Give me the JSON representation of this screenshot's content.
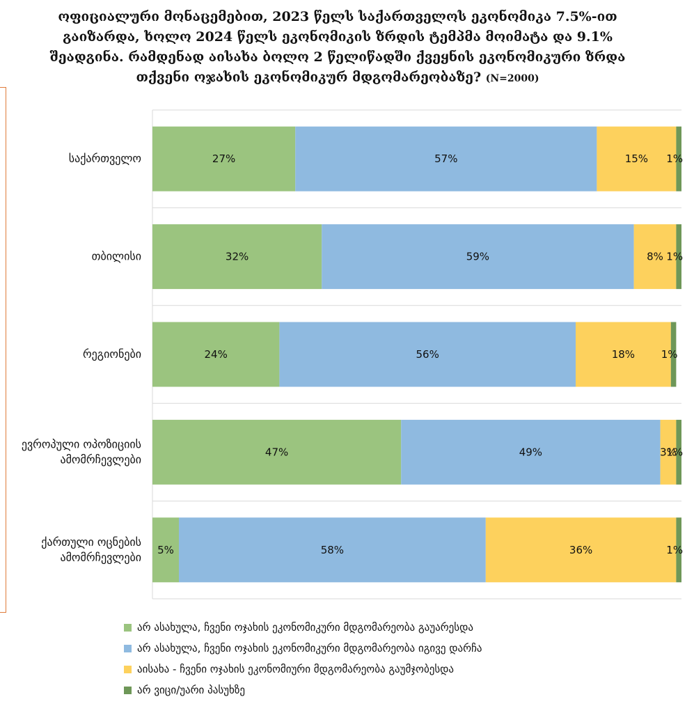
{
  "title": {
    "text": "ოფიციალური მონაცემებით, 2023 წელს საქართველოს ეკონომიკა 7.5%-ით გაიზარდა, ხოლო 2024 წელს ეკონომიკის ზრდის ტემპმა მოიმატა და 9.1% შეადგინა. რამდენად აისახა ბოლო 2 წელიწადში ქვეყნის ეკონომიკური ზრდა თქვენი ოჯახის ეკონომიკურ მდგომარეობაზე?",
    "n_note": "(N=2000)"
  },
  "chart_data": {
    "type": "bar",
    "orientation": "horizontal",
    "stacked": true,
    "categories": [
      [
        "საქართველო"
      ],
      [
        "თბილისი"
      ],
      [
        "რეგიონები"
      ],
      [
        "ევროპული ოპოზიციის",
        "ამომრჩევლები"
      ],
      [
        "ქართული ოცნების",
        "ამომრჩევლები"
      ]
    ],
    "series": [
      {
        "name": "არ ასახულა, ჩვენი ოჯახის ეკონომიკური მდგომარეობა გაუარესდა",
        "color": "#9bc47f",
        "values": [
          27,
          32,
          24,
          47,
          5
        ]
      },
      {
        "name": "არ ასახულა, ჩვენი ოჯახის ეკონომიკური მდგომარეობა იგივე დარჩა",
        "color": "#8fbae0",
        "values": [
          57,
          59,
          56,
          49,
          58
        ]
      },
      {
        "name": "აისახა - ჩვენი ოჯახის ეკონომიური მდგომარეობა გაუმჯობესდა",
        "color": "#fdd15d",
        "values": [
          15,
          8,
          18,
          3,
          36
        ]
      },
      {
        "name": "არ ვიცი/უარი პასუხზე",
        "color": "#6e9758",
        "values": [
          1,
          1,
          1,
          1,
          1
        ]
      }
    ],
    "value_suffix": "%",
    "xlim": [
      0,
      100
    ],
    "grid": true,
    "legend_position": "bottom"
  }
}
